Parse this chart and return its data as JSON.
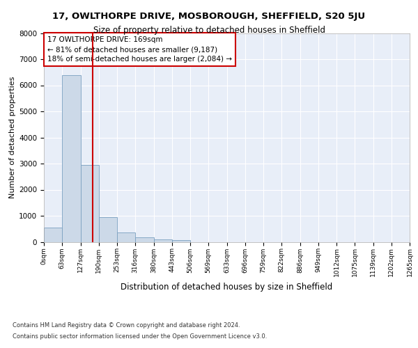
{
  "title1": "17, OWLTHORPE DRIVE, MOSBOROUGH, SHEFFIELD, S20 5JU",
  "title2": "Size of property relative to detached houses in Sheffield",
  "xlabel": "Distribution of detached houses by size in Sheffield",
  "ylabel": "Number of detached properties",
  "footnote1": "Contains HM Land Registry data © Crown copyright and database right 2024.",
  "footnote2": "Contains public sector information licensed under the Open Government Licence v3.0.",
  "annotation_line1": "17 OWLTHORPE DRIVE: 169sqm",
  "annotation_line2": "← 81% of detached houses are smaller (9,187)",
  "annotation_line3": "18% of semi-detached houses are larger (2,084) →",
  "property_size": 169,
  "bin_edges": [
    0,
    63,
    127,
    190,
    253,
    316,
    380,
    443,
    506,
    569,
    633,
    696,
    759,
    822,
    886,
    949,
    1012,
    1075,
    1139,
    1202,
    1265
  ],
  "bar_heights": [
    560,
    6380,
    2960,
    950,
    360,
    175,
    100,
    60,
    0,
    0,
    0,
    0,
    0,
    0,
    0,
    0,
    0,
    0,
    0,
    0
  ],
  "bar_color": "#ccd9e8",
  "bar_edgecolor": "#7aa0c0",
  "vline_color": "#cc0000",
  "vline_x": 169,
  "ylim": [
    0,
    8000
  ],
  "yticks": [
    0,
    1000,
    2000,
    3000,
    4000,
    5000,
    6000,
    7000,
    8000
  ],
  "background_color": "#ffffff",
  "plot_bg_color": "#e8eef8",
  "grid_color": "#ffffff"
}
